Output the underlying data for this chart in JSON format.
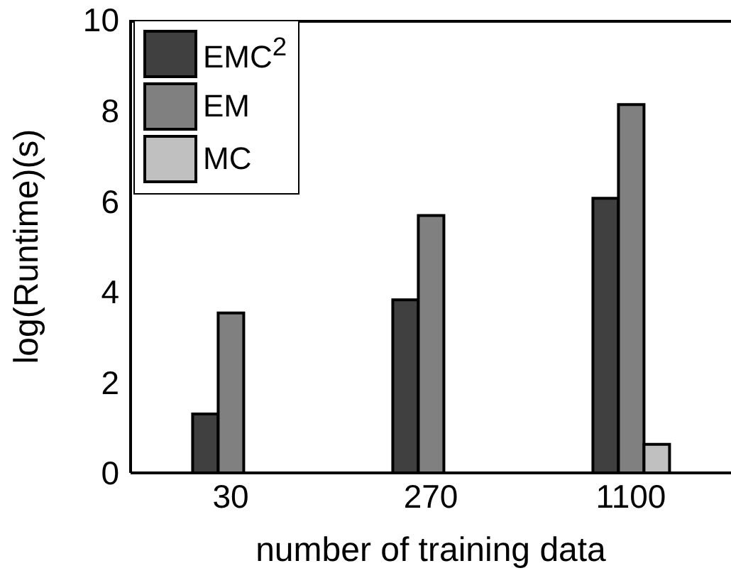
{
  "chart_data": {
    "type": "bar",
    "xlabel": "number of training data",
    "ylabel": "log(Runtime)(s)",
    "categories": [
      "30",
      "270",
      "1100"
    ],
    "series": [
      {
        "name": "EMC$^{2}$",
        "color": "#404040",
        "values": [
          1.3,
          3.82,
          6.06
        ]
      },
      {
        "name": "EM",
        "color": "#808080",
        "values": [
          3.53,
          5.68,
          8.13
        ]
      },
      {
        "name": "MC",
        "color": "#c0c0c0",
        "values": [
          0,
          0,
          0.63
        ]
      }
    ],
    "ylim": [
      0,
      10
    ],
    "yticks": [
      0,
      2,
      4,
      6,
      8,
      10
    ],
    "legend": "top left"
  }
}
